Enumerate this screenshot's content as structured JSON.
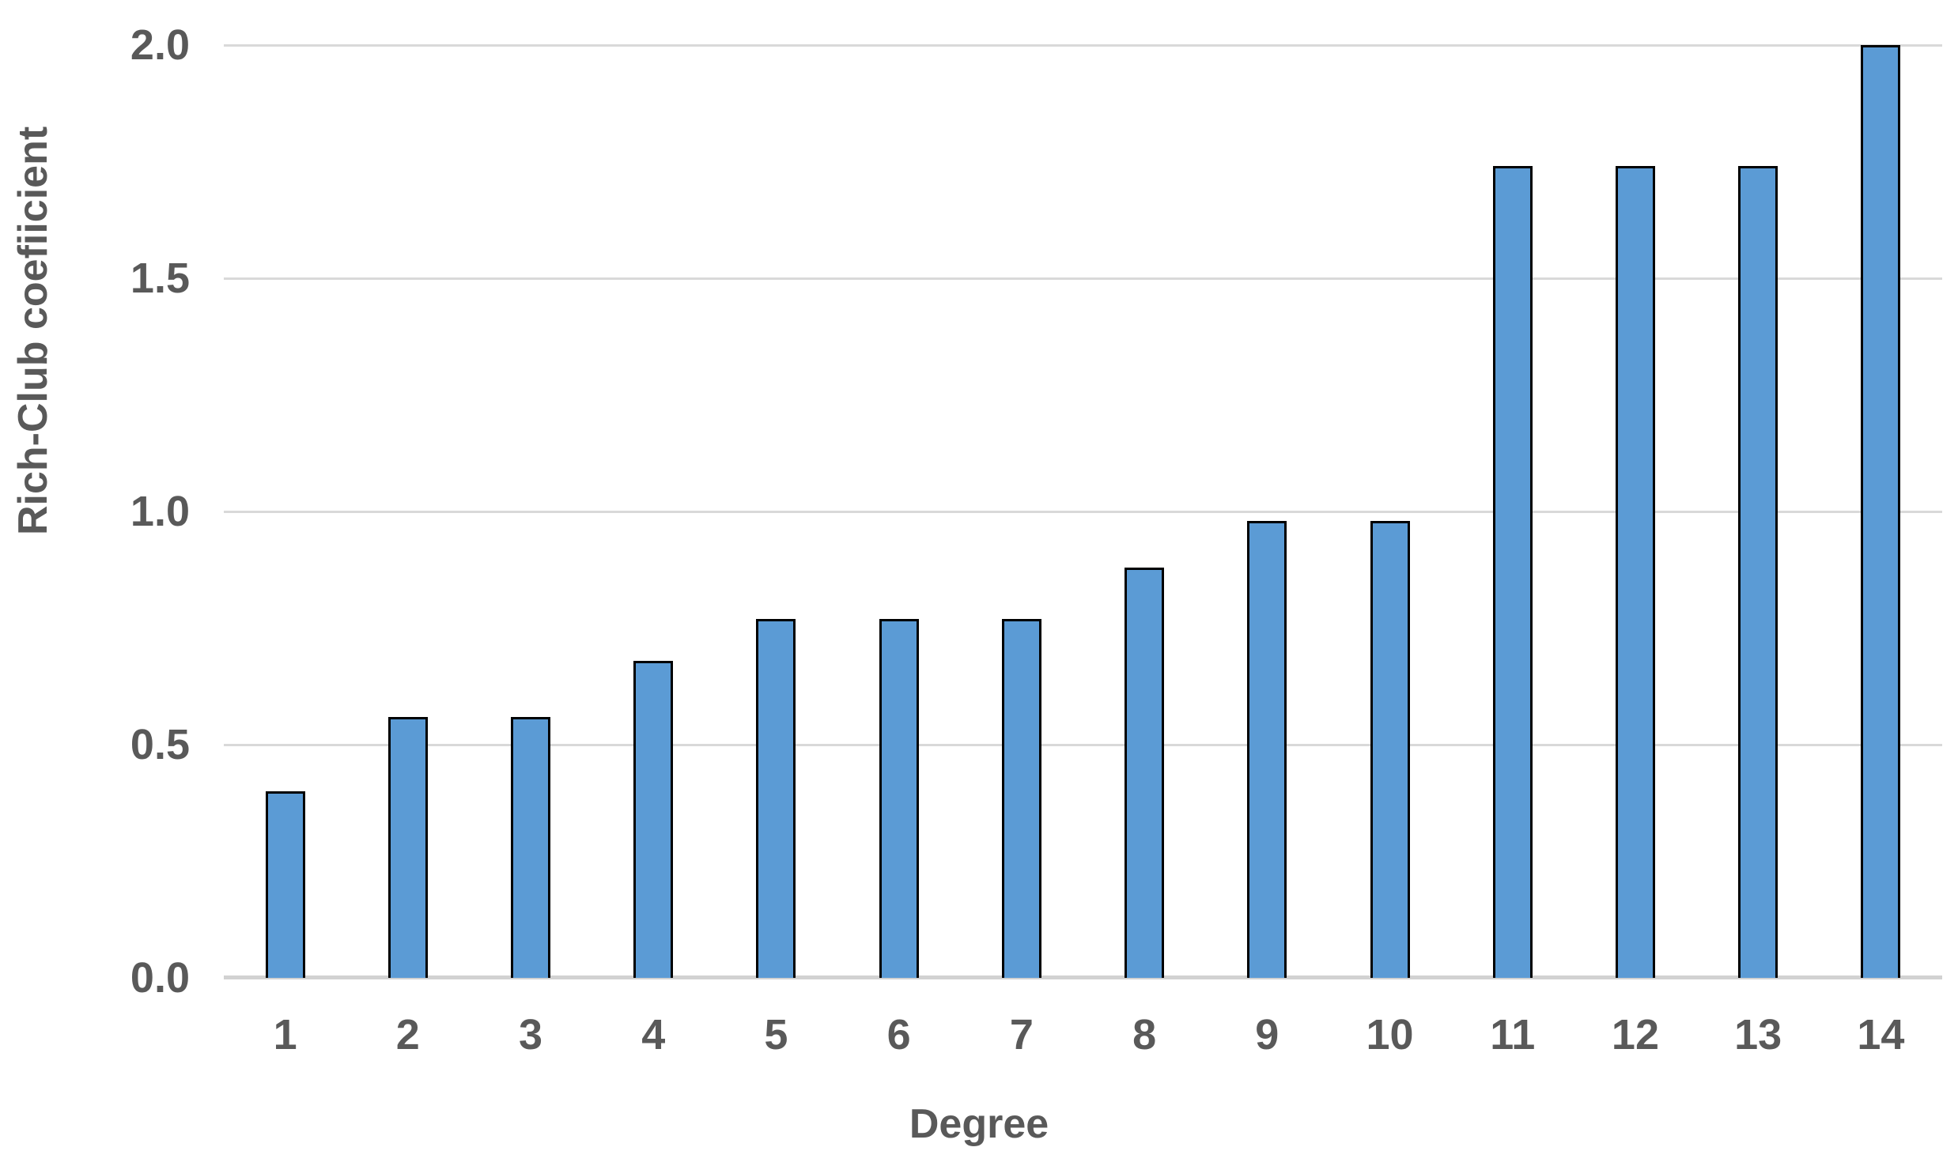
{
  "chart_data": {
    "type": "bar",
    "categories": [
      "1",
      "2",
      "3",
      "4",
      "5",
      "6",
      "7",
      "8",
      "9",
      "10",
      "11",
      "12",
      "13",
      "14"
    ],
    "values": [
      0.4,
      0.56,
      0.56,
      0.68,
      0.77,
      0.77,
      0.77,
      0.88,
      0.98,
      0.98,
      1.74,
      1.74,
      1.74,
      2.0
    ],
    "title": "",
    "xlabel": "Degree",
    "ylabel": "Rich-Club coefiicient",
    "ylim": [
      0.0,
      2.0
    ],
    "yticks": [
      0.0,
      0.5,
      1.0,
      1.5,
      2.0
    ],
    "ytick_labels": [
      "0.0",
      "0.5",
      "1.0",
      "1.5",
      "2.0"
    ],
    "grid": true,
    "legend": false,
    "colors": {
      "bar_fill": "#5b9bd5",
      "bar_border": "#000000",
      "gridline": "#d9d9d9",
      "axis_line": "#d2d2d2",
      "label_text": "#595959",
      "background": "#ffffff"
    }
  }
}
